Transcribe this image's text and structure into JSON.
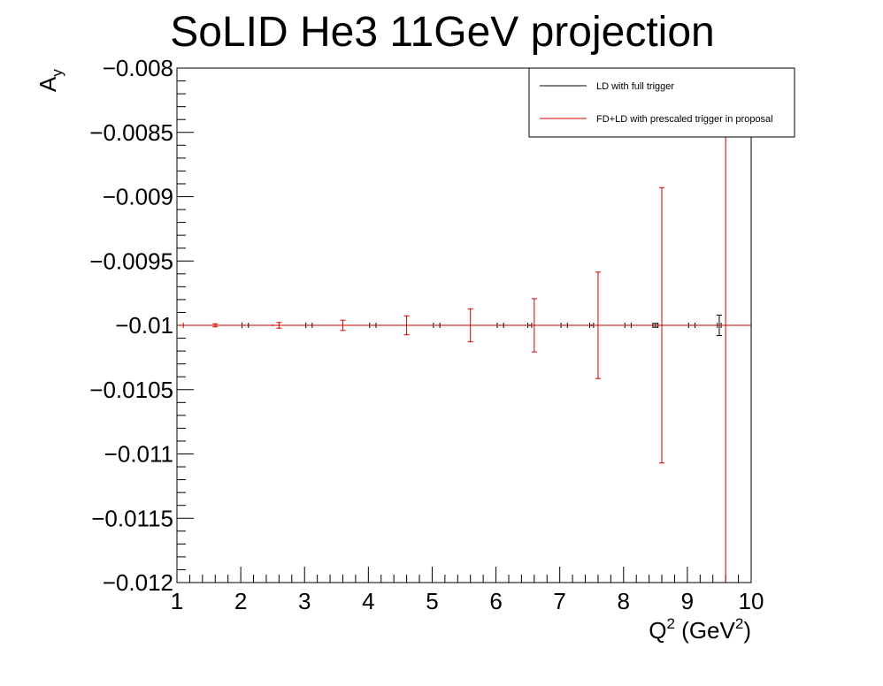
{
  "chart_data": {
    "type": "scatter",
    "title": "SoLID He3 11GeV projection",
    "xlabel": {
      "main": "Q",
      "sup1": "2",
      "rest": " (GeV",
      "sup2": "2",
      "end": ")"
    },
    "ylabel": {
      "main": "A",
      "sub": "y"
    },
    "xlim": [
      1,
      10
    ],
    "ylim": [
      -0.012,
      -0.008
    ],
    "x_major_ticks": [
      1,
      2,
      3,
      4,
      5,
      6,
      7,
      8,
      9,
      10
    ],
    "x_tick_labels": [
      "1",
      "2",
      "3",
      "4",
      "5",
      "6",
      "7",
      "8",
      "9",
      "10"
    ],
    "y_major_ticks": [
      -0.008,
      -0.0085,
      -0.009,
      -0.0095,
      -0.01,
      -0.0105,
      -0.011,
      -0.0115,
      -0.012
    ],
    "y_tick_labels": [
      "−0.008",
      "−0.0085",
      "−0.009",
      "−0.0095",
      "−0.01",
      "−0.0105",
      "−0.011",
      "−0.0115",
      "−0.012"
    ],
    "grid": false,
    "legend_position": "top-right",
    "series": [
      {
        "name": "LD with full trigger",
        "color": "#000000",
        "points": [
          {
            "x": 1.07,
            "y": -0.01,
            "xerr": 0.02,
            "yerr": 4e-06
          },
          {
            "x": 2.07,
            "y": -0.01,
            "xerr": 0.05,
            "yerr": 4e-06
          },
          {
            "x": 2.5,
            "y": -0.01,
            "xerr": 0.02,
            "yerr": 6e-06
          },
          {
            "x": 3.07,
            "y": -0.01,
            "xerr": 0.05,
            "yerr": 4e-06
          },
          {
            "x": 4.07,
            "y": -0.01,
            "xerr": 0.05,
            "yerr": 4e-06
          },
          {
            "x": 5.07,
            "y": -0.01,
            "xerr": 0.05,
            "yerr": 4e-06
          },
          {
            "x": 6.07,
            "y": -0.01,
            "xerr": 0.05,
            "yerr": 4e-06
          },
          {
            "x": 6.53,
            "y": -0.01,
            "xerr": 0.03,
            "yerr": 6e-06
          },
          {
            "x": 7.07,
            "y": -0.01,
            "xerr": 0.05,
            "yerr": 4e-06
          },
          {
            "x": 7.5,
            "y": -0.01,
            "xerr": 0.03,
            "yerr": 8e-06
          },
          {
            "x": 8.07,
            "y": -0.01,
            "xerr": 0.05,
            "yerr": 4e-06
          },
          {
            "x": 8.5,
            "y": -0.01,
            "xerr": 0.04,
            "yerr": 1.5e-05
          },
          {
            "x": 9.07,
            "y": -0.01,
            "xerr": 0.05,
            "yerr": 4e-06
          },
          {
            "x": 9.5,
            "y": -0.01,
            "xerr": 0.03,
            "yerr": 7.95e-05
          }
        ]
      },
      {
        "name": "FD+LD with prescaled trigger in proposal",
        "color": "#d00000",
        "points": [
          {
            "x": 1.05,
            "y": -0.01,
            "xerr": 0.05,
            "yerr": 4e-06
          },
          {
            "x": 1.6,
            "y": -0.01,
            "xerr": 0.02,
            "yerr": 1.2e-05
          },
          {
            "x": 2.6,
            "y": -0.01,
            "xerr": 0.02,
            "yerr": 2.2e-05
          },
          {
            "x": 3.6,
            "y": -0.01,
            "xerr": 0.02,
            "yerr": 4e-05
          },
          {
            "x": 4.6,
            "y": -0.01,
            "xerr": 0.02,
            "yerr": 7.35e-05
          },
          {
            "x": 5.6,
            "y": -0.01,
            "xerr": 0.02,
            "yerr": 0.000128
          },
          {
            "x": 6.6,
            "y": -0.01,
            "xerr": 0.02,
            "yerr": 0.000207
          },
          {
            "x": 7.6,
            "y": -0.01,
            "xerr": 0.02,
            "yerr": 0.000414
          },
          {
            "x": 8.6,
            "y": -0.01,
            "xerr": 0.02,
            "yerr": 0.00107
          },
          {
            "x": 9.6,
            "y": -0.01,
            "xerr": 0.02,
            "yerr": 0.0021
          }
        ]
      }
    ]
  }
}
